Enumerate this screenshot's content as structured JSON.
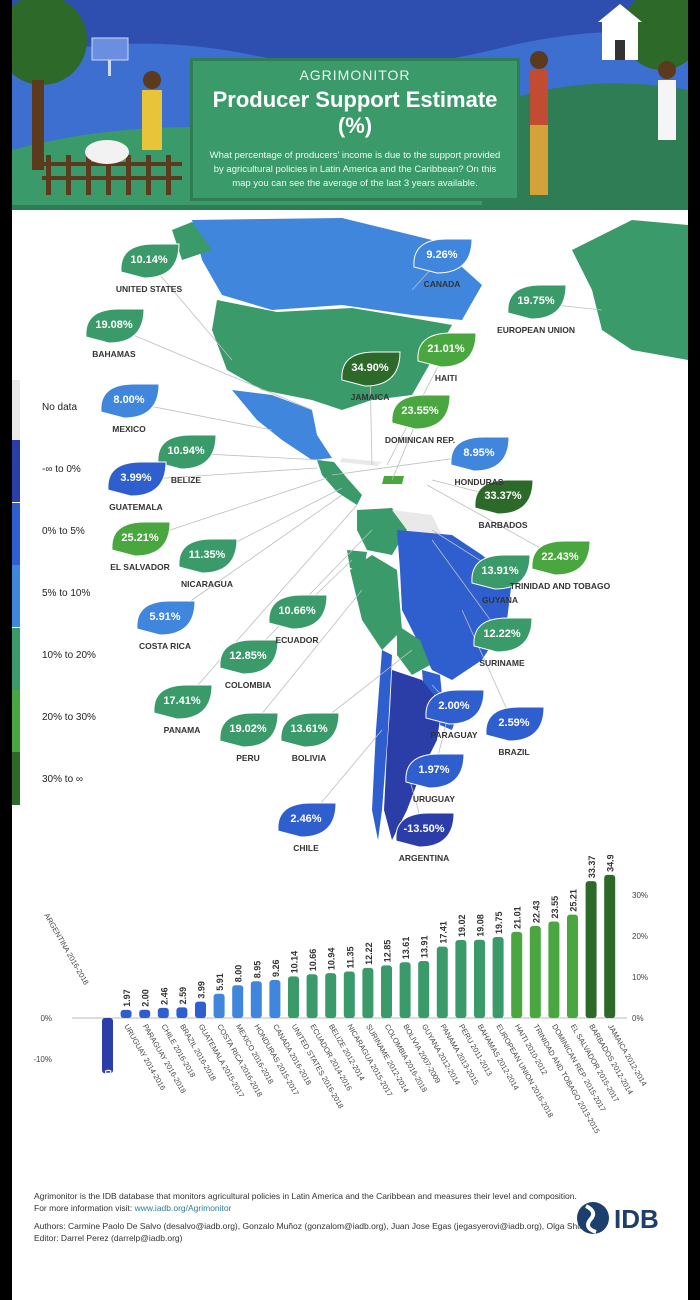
{
  "header": {
    "brand": "AGRIMONITOR",
    "title": "Producer Support Estimate (%)",
    "description": "What percentage of producers' income is due to the support provided by agricultural policies in Latin America and the Caribbean? On this map you can see the average of the last 3 years available."
  },
  "legend": [
    {
      "label": "No data",
      "color": "#e9e9e9"
    },
    {
      "label": "-∞ to 0%",
      "color": "#2b3ea8"
    },
    {
      "label": "0% to 5%",
      "color": "#2f5fcf"
    },
    {
      "label": "5% to 10%",
      "color": "#3f86dc"
    },
    {
      "label": "10% to 20%",
      "color": "#3a9a6a"
    },
    {
      "label": "20% to 30%",
      "color": "#4aa63e"
    },
    {
      "label": "30% to ∞",
      "color": "#2d6a2a"
    }
  ],
  "map_labels": [
    {
      "country": "UNITED STATES",
      "value": "10.14%"
    },
    {
      "country": "CANADA",
      "value": "9.26%"
    },
    {
      "country": "EUROPEAN UNION",
      "value": "19.75%"
    },
    {
      "country": "BAHAMAS",
      "value": "19.08%"
    },
    {
      "country": "JAMAICA",
      "value": "34.90%"
    },
    {
      "country": "HAITI",
      "value": "21.01%"
    },
    {
      "country": "MEXICO",
      "value": "8.00%"
    },
    {
      "country": "DOMINICAN REP.",
      "value": "23.55%"
    },
    {
      "country": "BELIZE",
      "value": "10.94%"
    },
    {
      "country": "HONDURAS",
      "value": "8.95%"
    },
    {
      "country": "GUATEMALA",
      "value": "3.99%"
    },
    {
      "country": "BARBADOS",
      "value": "33.37%"
    },
    {
      "country": "EL SALVADOR",
      "value": "25.21%"
    },
    {
      "country": "NICARAGUA",
      "value": "11.35%"
    },
    {
      "country": "TRINIDAD AND TOBAGO",
      "value": "22.43%"
    },
    {
      "country": "GUYANA",
      "value": "13.91%"
    },
    {
      "country": "ECUADOR",
      "value": "10.66%"
    },
    {
      "country": "COSTA RICA",
      "value": "5.91%"
    },
    {
      "country": "SURINAME",
      "value": "12.22%"
    },
    {
      "country": "COLOMBIA",
      "value": "12.85%"
    },
    {
      "country": "PANAMA",
      "value": "17.41%"
    },
    {
      "country": "PARAGUAY",
      "value": "2.00%"
    },
    {
      "country": "BRAZIL",
      "value": "2.59%"
    },
    {
      "country": "PERU",
      "value": "19.02%"
    },
    {
      "country": "BOLIVIA",
      "value": "13.61%"
    },
    {
      "country": "URUGUAY",
      "value": "1.97%"
    },
    {
      "country": "CHILE",
      "value": "2.46%"
    },
    {
      "country": "ARGENTINA",
      "value": "-13.50%"
    }
  ],
  "chart_data": {
    "type": "bar",
    "categories": [
      "ARGENTINA 2016-2018",
      "URUGUAY 2014-2016",
      "PARAGUAY 2016-2018",
      "CHILE 2016-2018",
      "BRAZIL 2016-2018",
      "GUATEMALA 2015-2017",
      "COSTA RICA 2016-2018",
      "MEXICO 2016-2018",
      "HONDURAS 2015-2017",
      "CANADA 2016-2018",
      "UNITED STATES 2016-2018",
      "ECUADOR 2014-2016",
      "BELIZE 2012-2014",
      "NICARAGUA 2015-2017",
      "SURINAME 2012-2014",
      "COLOMBIA 2016-2018",
      "BOLIVIA 2007-2009",
      "GUYANA 2012-2014",
      "PANAMA 2013-2015",
      "PERU 2011-2013",
      "BAHAMAS 2012-2014",
      "EUROPEAN UNION 2016-2018",
      "HAITI 2010-2012",
      "TRINIDAD AND TOBAGO 2013-2015",
      "DOMINICAN REP. 2015-2017",
      "EL SALVADOR 2015-2017",
      "BARBADOS 2012-2014",
      "JAMAICA 2012-2014"
    ],
    "labels": [
      "-13.50",
      "1.97",
      "2.00",
      "2.46",
      "2.59",
      "3.99",
      "5.91",
      "8.00",
      "8.95",
      "9.26",
      "10.14",
      "10.66",
      "10.94",
      "11.35",
      "12.22",
      "12.85",
      "13.61",
      "13.91",
      "17.41",
      "19.02",
      "19.08",
      "19.75",
      "21.01",
      "22.43",
      "23.55",
      "25.21",
      "33.37",
      "34.90"
    ],
    "values": [
      -13.5,
      1.97,
      2.0,
      2.46,
      2.59,
      3.99,
      5.91,
      8.0,
      8.95,
      9.26,
      10.14,
      10.66,
      10.94,
      11.35,
      12.22,
      12.85,
      13.61,
      13.91,
      17.41,
      19.02,
      19.08,
      19.75,
      21.01,
      22.43,
      23.55,
      25.21,
      33.37,
      34.9
    ],
    "left_ticks": [
      "0%",
      "-10%"
    ],
    "right_ticks": [
      "30%",
      "20%",
      "10%",
      "0%"
    ],
    "ylim": [
      -15,
      36
    ]
  },
  "footer": {
    "line1": "Agrimonitor is the IDB database that monitors agricultural policies in Latin America and the Caribbean and measures their level and composition.",
    "line2": "For more information visit:",
    "link": "www.iadb.org/Agrimonitor",
    "authors": "Authors: Carmine Paolo De Salvo (desalvo@iadb.org), Gonzalo Muñoz (gonzalom@iadb.org), Juan Jose Egas (jegasyerovi@iadb.org), Olga Shik.",
    "editor": "Editor: Darrel Perez (darrelp@iadb.org)",
    "logo_text": "IDB"
  }
}
